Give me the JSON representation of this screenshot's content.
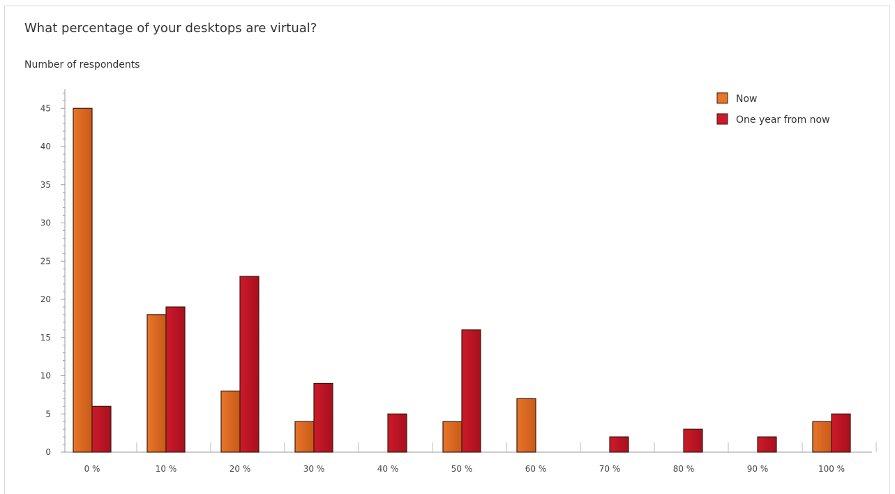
{
  "chart_data": {
    "type": "bar",
    "title": "What percentage of your desktops are virtual?",
    "ylabel": "Number of respondents",
    "xlabel": "",
    "categories": [
      "0 %",
      "10 %",
      "20 %",
      "30 %",
      "40 %",
      "50 %",
      "60 %",
      "70 %",
      "80 %",
      "90 %",
      "100 %"
    ],
    "series": [
      {
        "name": "Now",
        "color": "#e8752a",
        "values": [
          45,
          18,
          8,
          4,
          0,
          4,
          7,
          0,
          0,
          0,
          4
        ]
      },
      {
        "name": "One year from now",
        "color": "#cc1a2a",
        "values": [
          6,
          19,
          23,
          9,
          5,
          16,
          0,
          2,
          3,
          2,
          5
        ]
      }
    ],
    "ylim": [
      0,
      47
    ],
    "yticks": [
      0,
      5,
      10,
      15,
      20,
      25,
      30,
      35,
      40,
      45
    ],
    "grid": false,
    "legend_position": "top-right"
  }
}
